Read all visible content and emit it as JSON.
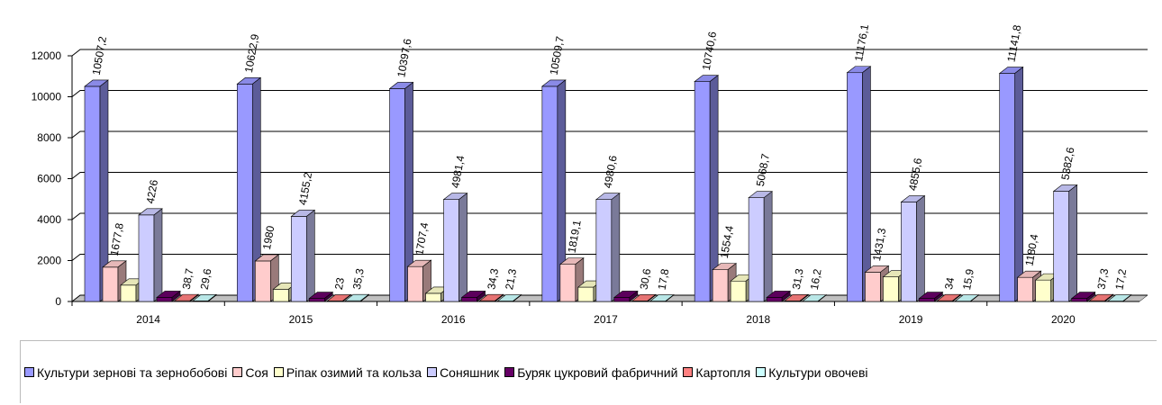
{
  "chart_data": {
    "type": "bar3d",
    "categories": [
      "2014",
      "2015",
      "2016",
      "2017",
      "2018",
      "2019",
      "2020"
    ],
    "ylim": [
      0,
      12000
    ],
    "yticks": [
      0,
      2000,
      4000,
      6000,
      8000,
      10000,
      12000
    ],
    "grid": true,
    "legend": "bottom",
    "series": [
      {
        "name": "Культури зернові та зернобобові",
        "color": "#9999ff",
        "values": [
          10507.2,
          10622.9,
          10397.6,
          10509.7,
          10740.6,
          11176.1,
          11141.8
        ],
        "value_labels": [
          "10507,2",
          "10622,9",
          "10397,6",
          "10509,7",
          "10740,6",
          "11176,1",
          "11141,8"
        ]
      },
      {
        "name": "Соя",
        "color": "#ffcccc",
        "values": [
          1677.8,
          1980,
          1707.4,
          1819.1,
          1554.4,
          1431.3,
          1180.4
        ],
        "value_labels": [
          "1677,8",
          "1980",
          "1707,4",
          "1819,1",
          "1554,4",
          "1431,3",
          "1180,4"
        ]
      },
      {
        "name": "Ріпак озимий та кольза",
        "color": "#ffffcc",
        "values": [
          800,
          600,
          400,
          700,
          1000,
          1200,
          1050
        ]
      },
      {
        "name": "Соняшник",
        "color": "#ccccff",
        "values": [
          4226,
          4155.2,
          4981.4,
          4980.6,
          5068.7,
          4855.6,
          5382.6
        ],
        "value_labels": [
          "4226",
          "4155,2",
          "4981,4",
          "4980,6",
          "5068,7",
          "4855,6",
          "5382,6"
        ]
      },
      {
        "name": "Буряк цукровий фабричний",
        "color": "#660066",
        "values": [
          200,
          150,
          200,
          200,
          200,
          150,
          150
        ]
      },
      {
        "name": "Картопля",
        "color": "#ff8080",
        "values": [
          38.7,
          23,
          34.3,
          30.6,
          31.3,
          34,
          37.3
        ],
        "value_labels": [
          "38,7",
          "23",
          "34,3",
          "30,6",
          "31,3",
          "34",
          "37,3"
        ]
      },
      {
        "name": "Культури овочеві",
        "color": "#ccffff",
        "values": [
          29.6,
          35.3,
          21.3,
          17.8,
          16.2,
          15.9,
          17.2
        ],
        "value_labels": [
          "29,6",
          "35,3",
          "21,3",
          "17,8",
          "16,2",
          "15,9",
          "17,2"
        ]
      }
    ]
  }
}
